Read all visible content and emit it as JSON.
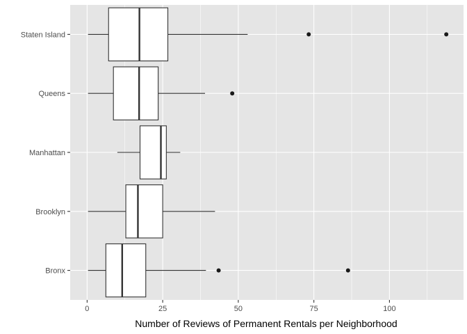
{
  "chart_data": {
    "type": "boxplot",
    "orientation": "horizontal",
    "title": "",
    "xlabel": "Number of Reviews of Permanent Rentals per Neighborhood",
    "ylabel": "",
    "xlim": [
      -5.6,
      124.5
    ],
    "x_ticks": [
      0,
      25,
      50,
      75,
      100
    ],
    "x_tick_labels": [
      "0",
      "25",
      "50",
      "75",
      "100"
    ],
    "grid": true,
    "legend": "none",
    "colors": {
      "panel_background": "#e5e5e5",
      "grid": "#ffffff",
      "box_fill": "#ffffff",
      "box_stroke": "#333333",
      "outlier": "#1a1a1a",
      "axis_text": "#4d4d4d"
    },
    "categories": [
      "Bronx",
      "Brooklyn",
      "Manhattan",
      "Queens",
      "Staten Island"
    ],
    "boxes": [
      {
        "category": "Bronx",
        "whisker_low": 0.3,
        "q1": 6.2,
        "median": 11.6,
        "q3": 19.4,
        "whisker_high": 39.3,
        "outliers": [
          43.5,
          86.3
        ]
      },
      {
        "category": "Brooklyn",
        "whisker_low": 0.3,
        "q1": 12.8,
        "median": 16.8,
        "q3": 25.0,
        "whisker_high": 42.3,
        "outliers": []
      },
      {
        "category": "Manhattan",
        "whisker_low": 10.0,
        "q1": 17.5,
        "median": 24.4,
        "q3": 26.2,
        "whisker_high": 30.8,
        "outliers": []
      },
      {
        "category": "Queens",
        "whisker_low": 0.3,
        "q1": 8.7,
        "median": 17.2,
        "q3": 23.5,
        "whisker_high": 39.0,
        "outliers": [
          48.0
        ]
      },
      {
        "category": "Staten Island",
        "whisker_low": 0.3,
        "q1": 7.1,
        "median": 17.3,
        "q3": 26.7,
        "whisker_high": 53.1,
        "outliers": [
          73.3,
          118.8
        ]
      }
    ]
  }
}
